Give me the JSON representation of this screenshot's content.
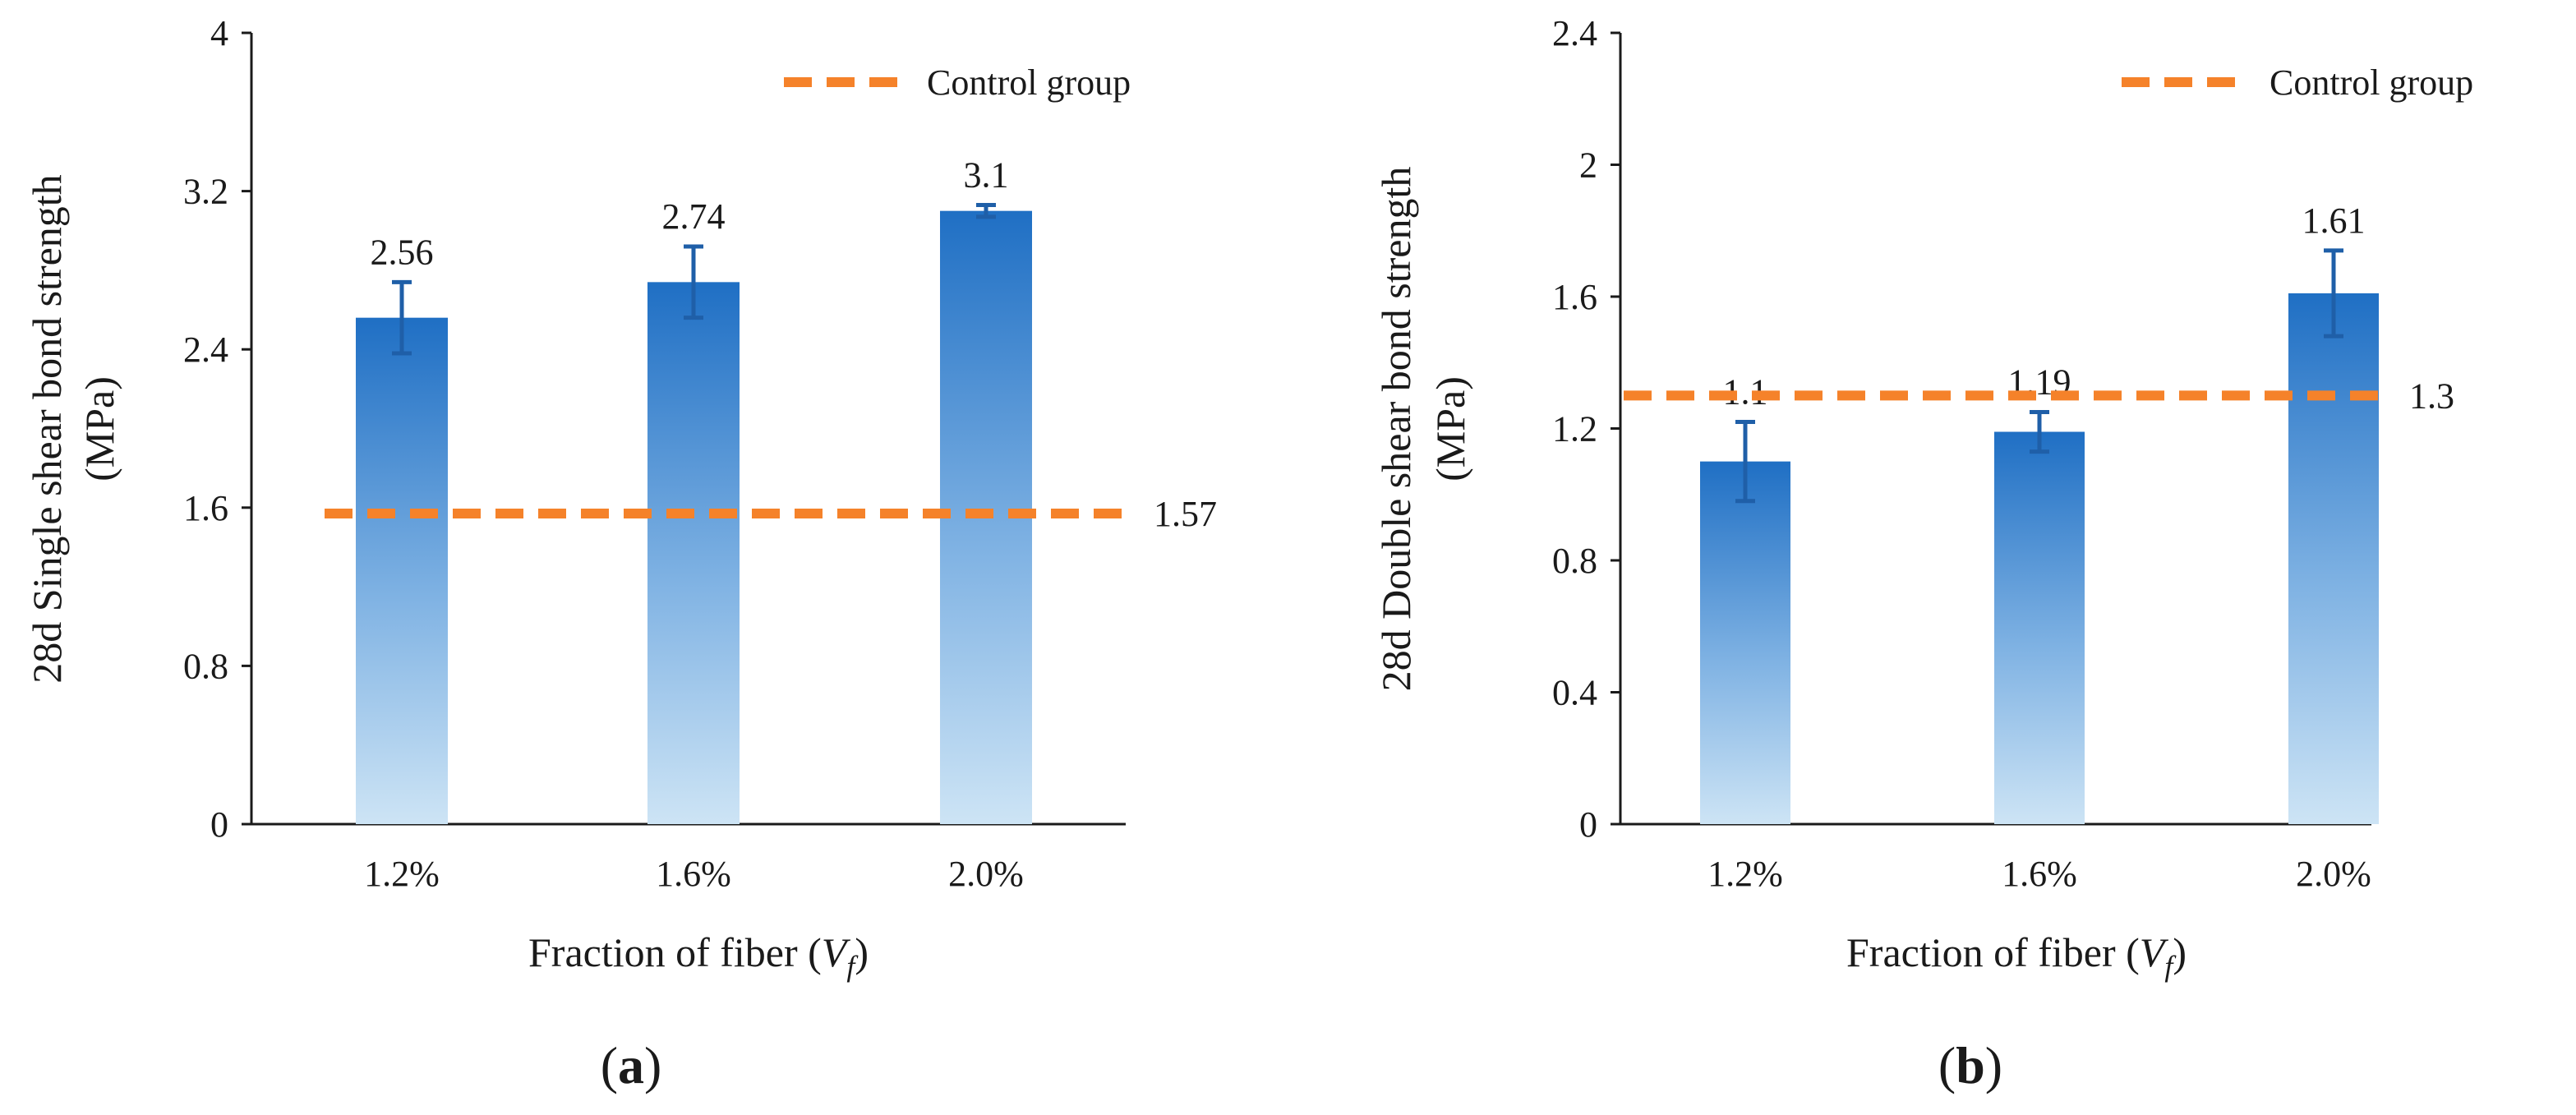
{
  "chart_data": [
    {
      "type": "bar",
      "panel": "a",
      "categories": [
        "1.2%",
        "1.6%",
        "2.0%"
      ],
      "values": [
        2.56,
        2.74,
        3.1
      ],
      "value_labels": [
        "2.56",
        "2.74",
        "3.1"
      ],
      "error": [
        0.18,
        0.18,
        0.03
      ],
      "ylim": [
        0,
        4
      ],
      "yticks": [
        0,
        0.8,
        1.6,
        2.4,
        3.2,
        4
      ],
      "ytick_labels": [
        "0",
        "0.8",
        "1.6",
        "2.4",
        "3.2",
        "4"
      ],
      "ylabel_line1": "28d Single  shear bond strength",
      "ylabel_line2": "(MPa)",
      "xlabel_prefix": "Fraction of fiber  (",
      "xlabel_var": "V",
      "xlabel_sub": "f",
      "xlabel_suffix": ")",
      "control": {
        "value": 1.57,
        "label": "1.57"
      },
      "legend": {
        "text": "Control group",
        "position": "top-right"
      },
      "colors": {
        "bar_top": "#1f6fc4",
        "bar_mid": "#7fb2e3",
        "bar_bottom": "#cde4f5",
        "error": "#1f5fa8",
        "control": "#f5822a"
      }
    },
    {
      "type": "bar",
      "panel": "b",
      "categories": [
        "1.2%",
        "1.6%",
        "2.0%"
      ],
      "values": [
        1.1,
        1.19,
        1.61
      ],
      "value_labels": [
        "1.1",
        "1.19",
        "1.61"
      ],
      "error": [
        0.12,
        0.06,
        0.13
      ],
      "ylim": [
        0,
        2.4
      ],
      "yticks": [
        0,
        0.4,
        0.8,
        1.2,
        1.6,
        2,
        2.4
      ],
      "ytick_labels": [
        "0",
        "0.4",
        "0.8",
        "1.2",
        "1.6",
        "2",
        "2.4"
      ],
      "ylabel_line1": "28d Double  shear bond strength",
      "ylabel_line2": "(MPa)",
      "xlabel_prefix": "Fraction of fiber  (",
      "xlabel_var": "V",
      "xlabel_sub": "f",
      "xlabel_suffix": ")",
      "control": {
        "value": 1.3,
        "label": "1.3"
      },
      "legend": {
        "text": "Control group",
        "position": "top-right"
      },
      "colors": {
        "bar_top": "#1f6fc4",
        "bar_mid": "#7fb2e3",
        "bar_bottom": "#cde4f5",
        "error": "#1f5fa8",
        "control": "#f5822a"
      }
    }
  ],
  "panel_labels": [
    "a",
    "b"
  ]
}
